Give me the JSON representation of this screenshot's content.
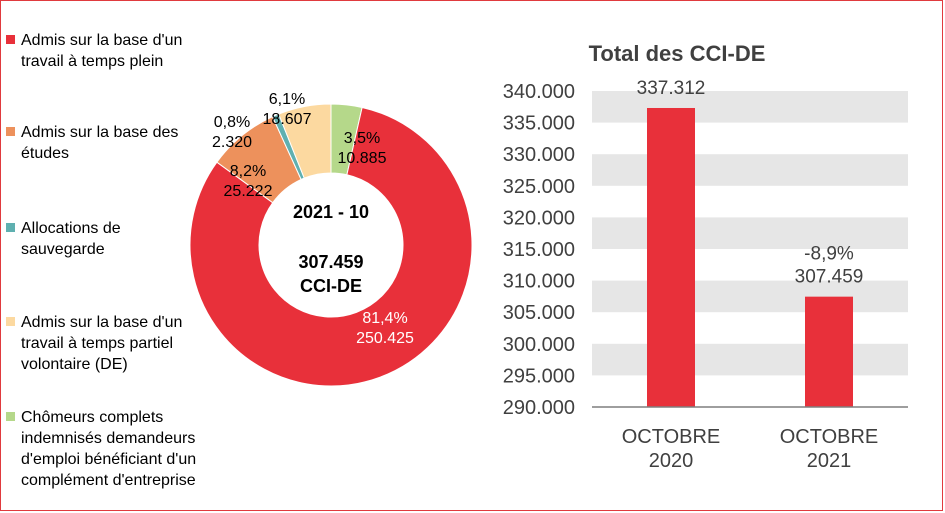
{
  "chart_data": [
    {
      "type": "pie",
      "center_label": {
        "period": "2021 - 10",
        "total": "307.459",
        "unit": "CCI-DE"
      },
      "slices": [
        {
          "name": "Admis sur la base d'un travail à temps plein",
          "value": 250425,
          "pct": "81,4%",
          "value_label": "250.425",
          "color": "#e8303a",
          "legend_lines": [
            "Admis sur la base d'un",
            "travail à temps plein"
          ]
        },
        {
          "name": "Admis sur la base des études",
          "value": 25222,
          "pct": "8,2%",
          "value_label": "25.222",
          "color": "#ed915c",
          "legend_lines": [
            "Admis sur la base des",
            "études"
          ]
        },
        {
          "name": "Allocations de sauvegarde",
          "value": 2320,
          "pct": "0,8%",
          "value_label": "2.320",
          "color": "#5fb0b0",
          "legend_lines": [
            "Allocations de",
            "sauvegarde"
          ]
        },
        {
          "name": "Admis sur la base d'un travail à temps partiel volontaire (DE)",
          "value": 18607,
          "pct": "6,1%",
          "value_label": "18.607",
          "color": "#fcd9a0",
          "legend_lines": [
            "Admis sur la base d'un",
            "travail à temps partiel",
            "volontaire (DE)"
          ]
        },
        {
          "name": "Chômeurs complets indemnisés demandeurs d'emploi bénéficiant d'un complément d'entreprise",
          "value": 10885,
          "pct": "3,5%",
          "value_label": "10.885",
          "color": "#b5d88a",
          "legend_lines": [
            "Chômeurs complets",
            "indemnisés demandeurs",
            "d'emploi bénéficiant d'un",
            "complément d'entreprise"
          ]
        }
      ]
    },
    {
      "type": "bar",
      "title": "Total des CCI-DE",
      "categories": [
        [
          "OCTOBRE",
          "2020"
        ],
        [
          "OCTOBRE",
          "2021"
        ]
      ],
      "values": [
        337312,
        307459
      ],
      "data_labels": [
        [
          "337.312"
        ],
        [
          "-8,9%",
          "307.459"
        ]
      ],
      "ylim": [
        290000,
        340000
      ],
      "yticks": [
        "290.000",
        "295.000",
        "300.000",
        "305.000",
        "310.000",
        "315.000",
        "320.000",
        "325.000",
        "330.000",
        "335.000",
        "340.000"
      ],
      "bar_color": "#e8303a",
      "grid": "banded",
      "legend": "none"
    }
  ]
}
